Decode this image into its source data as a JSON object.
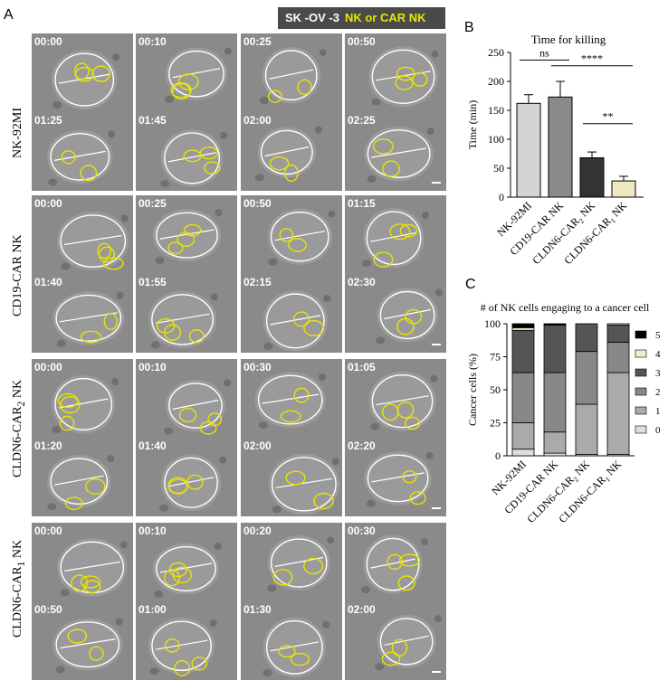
{
  "panel_letters": {
    "a": "A",
    "b": "B",
    "c": "C"
  },
  "legend": {
    "target": "SK -OV -3",
    "effector": "NK or CAR NK"
  },
  "rows": [
    {
      "label_html": "NK-92MI",
      "times": [
        "00:00",
        "00:10",
        "00:25",
        "00:50",
        "01:25",
        "01:45",
        "02:00",
        "02:25"
      ]
    },
    {
      "label_html": "CD19-CAR NK",
      "times": [
        "00:00",
        "00:25",
        "00:50",
        "01:15",
        "01:40",
        "01:55",
        "02:15",
        "02:30"
      ]
    },
    {
      "label_html": "CLDN6-CAR<sub>2</sub> NK",
      "times": [
        "00:00",
        "00:10",
        "00:30",
        "01:05",
        "01:20",
        "01:40",
        "02:00",
        "02:20"
      ]
    },
    {
      "label_html": "CLDN6-CAR<sub>1</sub> NK",
      "times": [
        "00:00",
        "00:10",
        "00:20",
        "00:30",
        "00:50",
        "01:00",
        "01:30",
        "02:00"
      ]
    }
  ],
  "chart_data": [
    {
      "type": "bar",
      "title": "Time for killing",
      "ylabel": "Time (min)",
      "categories": [
        "NK-92MI",
        "CD19-CAR NK",
        "CLDN6-CAR2 NK",
        "CLDN6-CAR1 NK"
      ],
      "values": [
        162,
        173,
        68,
        28
      ],
      "errors": [
        15,
        27,
        10,
        8
      ],
      "colors": [
        "#d4d4d4",
        "#8a8a8a",
        "#333333",
        "#efe9c3"
      ],
      "ylim": [
        0,
        250
      ],
      "yticks": [
        0,
        50,
        100,
        150,
        200,
        250
      ],
      "annotations": [
        {
          "text": "ns",
          "from": 0,
          "to": 1
        },
        {
          "text": "****",
          "from": 1,
          "to": 3
        },
        {
          "text": "**",
          "from": 2,
          "to": 3
        }
      ]
    },
    {
      "type": "bar",
      "stacked": true,
      "title": "# of NK cells engaging to a cancer cell",
      "ylabel": "Cancer cells (%)",
      "categories": [
        "NK-92MI",
        "CD19-CAR NK",
        "CLDN6-CAR2 NK",
        "CLDN6-CAR1 NK"
      ],
      "ylim": [
        0,
        100
      ],
      "yticks": [
        0,
        25,
        50,
        75,
        100
      ],
      "series": [
        {
          "name": "0",
          "color": "#dedede",
          "values": [
            5,
            2,
            1,
            1
          ]
        },
        {
          "name": "1",
          "color": "#aaaaaa",
          "values": [
            20,
            16,
            38,
            62
          ]
        },
        {
          "name": "2",
          "color": "#888888",
          "values": [
            38,
            45,
            40,
            23
          ]
        },
        {
          "name": "3",
          "color": "#555555",
          "values": [
            32,
            36,
            21,
            13
          ]
        },
        {
          "name": "4",
          "color": "#f2edcc",
          "values": [
            2,
            0,
            0,
            1
          ]
        },
        {
          "name": "5",
          "color": "#000000",
          "values": [
            3,
            1,
            0,
            0
          ]
        }
      ]
    }
  ]
}
